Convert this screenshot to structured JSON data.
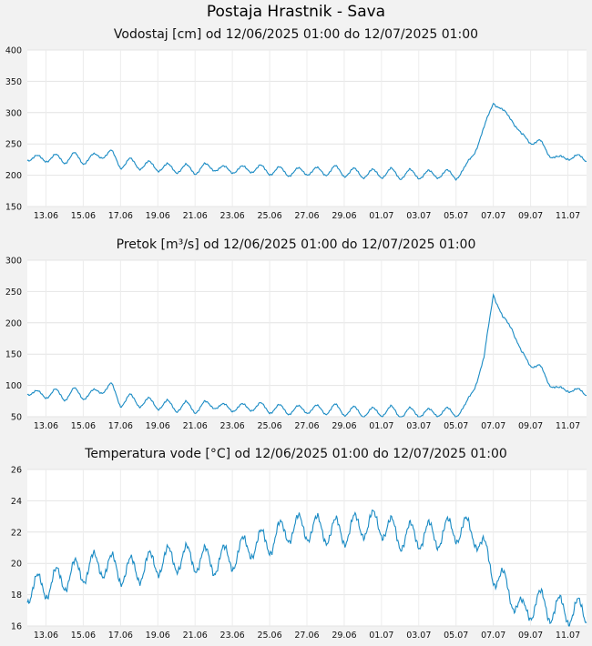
{
  "station_title": "Postaja Hrastnik - Sava",
  "x_tick_labels": [
    "13.06",
    "15.06",
    "17.06",
    "19.06",
    "21.06",
    "23.06",
    "25.06",
    "27.06",
    "29.06",
    "01.07",
    "03.07",
    "05.07",
    "07.07",
    "09.07",
    "11.07"
  ],
  "line_color": "#1a8bc4",
  "chart_data": [
    {
      "type": "line",
      "title": "Vodostaj [cm] od 12/06/2025 01:00 do 12/07/2025 01:00",
      "xlabel": "",
      "ylabel": "",
      "ylim": [
        150,
        400
      ],
      "y_ticks": [
        150,
        200,
        250,
        300,
        350,
        400
      ],
      "grid": true,
      "x_days": [
        0,
        1,
        1.5,
        2,
        2.5,
        3,
        3.5,
        4,
        4.5,
        5,
        5.5,
        6,
        6.5,
        7,
        7.5,
        8,
        8.5,
        9,
        9.5,
        10,
        10.5,
        11,
        11.5,
        12,
        12.5,
        13,
        13.5,
        14,
        14.5,
        15,
        15.5,
        16,
        16.5,
        17,
        17.5,
        18,
        18.5,
        19,
        19.5,
        20,
        20.5,
        21,
        21.5,
        22,
        22.5,
        23,
        23.5,
        24,
        24.5,
        25,
        25.5,
        26,
        26.5,
        27,
        27.5,
        28,
        28.5,
        29,
        29.5,
        30
      ],
      "values": [
        228,
        226,
        229,
        223,
        232,
        222,
        229,
        232,
        236,
        215,
        223,
        214,
        218,
        211,
        214,
        208,
        213,
        206,
        214,
        212,
        210,
        208,
        210,
        209,
        212,
        205,
        209,
        203,
        207,
        205,
        208,
        204,
        211,
        202,
        207,
        200,
        205,
        200,
        207,
        198,
        205,
        199,
        203,
        200,
        204,
        198,
        210,
        240,
        272,
        320,
        300,
        292,
        262,
        255,
        252,
        235,
        225,
        230,
        228,
        226
      ],
      "diurnal_amplitude": 5
    },
    {
      "type": "line",
      "title": "Pretok [m³/s] od 12/06/2025 01:00 do 12/07/2025 01:00",
      "xlabel": "",
      "ylabel": "",
      "ylim": [
        50,
        300
      ],
      "y_ticks": [
        50,
        100,
        150,
        200,
        250,
        300
      ],
      "grid": true,
      "x_days": [
        0,
        1,
        1.5,
        2,
        2.5,
        3,
        3.5,
        4,
        4.5,
        5,
        5.5,
        6,
        6.5,
        7,
        7.5,
        8,
        8.5,
        9,
        9.5,
        10,
        10.5,
        11,
        11.5,
        12,
        12.5,
        13,
        13.5,
        14,
        14.5,
        15,
        15.5,
        16,
        16.5,
        17,
        17.5,
        18,
        18.5,
        19,
        19.5,
        20,
        20.5,
        21,
        21.5,
        22,
        22.5,
        23,
        23.5,
        24,
        24.5,
        25,
        25.5,
        26,
        26.5,
        27,
        27.5,
        28,
        28.5,
        29,
        29.5,
        30
      ],
      "values": [
        90,
        84,
        90,
        80,
        92,
        82,
        88,
        92,
        100,
        70,
        82,
        70,
        76,
        66,
        72,
        62,
        70,
        60,
        70,
        68,
        66,
        63,
        66,
        64,
        68,
        60,
        65,
        58,
        63,
        60,
        64,
        58,
        66,
        56,
        62,
        54,
        60,
        55,
        63,
        52,
        60,
        54,
        58,
        55,
        60,
        54,
        65,
        100,
        140,
        250,
        205,
        195,
        150,
        135,
        128,
        105,
        92,
        95,
        90,
        88
      ],
      "diurnal_amplitude": 5
    },
    {
      "type": "line",
      "title": "Temperatura vode [°C] od 12/06/2025 01:00 do 12/07/2025 01:00",
      "xlabel": "",
      "ylabel": "",
      "ylim": [
        16,
        26
      ],
      "y_ticks": [
        16,
        18,
        20,
        22,
        24,
        26
      ],
      "grid": true,
      "x_days": [
        0,
        1,
        2,
        3,
        4,
        5,
        6,
        7,
        8,
        9,
        10,
        11,
        12,
        13,
        14,
        15,
        16,
        17,
        18,
        19,
        20,
        21,
        22,
        23,
        24,
        25,
        26,
        26.6,
        27.3,
        28,
        28.8,
        29.3,
        30
      ],
      "values": [
        18.3,
        18.6,
        19.1,
        19.6,
        20.0,
        19.5,
        19.6,
        20.1,
        20.3,
        20.3,
        20.1,
        20.4,
        21.2,
        21.4,
        22.2,
        22.3,
        22.1,
        22.0,
        22.5,
        22.5,
        21.7,
        21.8,
        21.8,
        22.2,
        22.0,
        19.5,
        18.0,
        16.7,
        17.6,
        17.1,
        17.0,
        16.9,
        16.9
      ],
      "diurnal_amplitude": 0.85
    }
  ]
}
